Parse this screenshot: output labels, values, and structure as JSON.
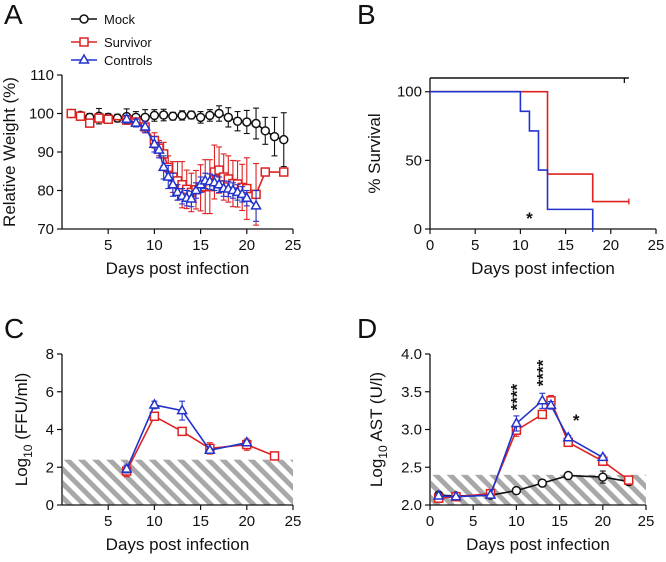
{
  "chart_data": [
    {
      "panel": "A",
      "type": "line",
      "xlabel": "Days post infection",
      "ylabel": "Relative Weight  (%)",
      "xlim": [
        0,
        25
      ],
      "ylim": [
        70,
        110
      ],
      "xticks": [
        5,
        10,
        15,
        20,
        25
      ],
      "yticks": [
        70,
        80,
        90,
        100,
        110
      ],
      "legend": {
        "position": "top-left",
        "entries": [
          "Mock",
          "Survivor",
          "Controls"
        ]
      },
      "series": [
        {
          "name": "Mock",
          "color": "#111111",
          "marker": "circle",
          "x": [
            1,
            2,
            3,
            4,
            5,
            6,
            7,
            8,
            9,
            10,
            11,
            12,
            13,
            14,
            15,
            16,
            17,
            18,
            19,
            20,
            21,
            22,
            23,
            24
          ],
          "y": [
            100,
            99.5,
            99,
            99.3,
            99,
            98.8,
            99.2,
            99,
            99,
            99.5,
            99.6,
            99.3,
            99.5,
            99.6,
            99,
            99.5,
            100,
            99,
            98,
            97.8,
            97.4,
            95.5,
            94,
            93.2
          ],
          "err": [
            0.5,
            0.8,
            1,
            2,
            1,
            1,
            2,
            1.5,
            2,
            1.5,
            1.5,
            1,
            1.2,
            1,
            1.5,
            1.5,
            2,
            2.5,
            2.5,
            3,
            4,
            3.5,
            5,
            7
          ]
        },
        {
          "name": "Survivor",
          "color": "#dd2222",
          "marker": "square",
          "x": [
            1,
            2,
            3,
            4,
            5,
            7,
            8,
            9,
            10,
            10.5,
            11,
            11.5,
            12,
            12.5,
            13,
            13.5,
            14,
            14.5,
            15,
            15.5,
            16,
            16.5,
            17,
            17.5,
            18,
            18.5,
            19,
            19.5,
            20,
            21,
            22,
            24
          ],
          "y": [
            100,
            99.3,
            97.5,
            98.8,
            98.5,
            98.3,
            97.8,
            96.5,
            93,
            91,
            89.5,
            86,
            83.5,
            82.5,
            81.5,
            80.3,
            79.5,
            80.2,
            80.7,
            81,
            81,
            84.8,
            85.3,
            83.5,
            83,
            81.8,
            81.7,
            80.8,
            80.5,
            79,
            84.8,
            84.8
          ],
          "err": [
            0.5,
            0.5,
            1,
            1,
            1,
            1,
            1,
            1.5,
            2,
            2,
            3,
            3,
            4,
            5,
            6,
            5,
            5,
            5,
            6,
            7,
            7,
            7,
            6,
            6,
            6,
            6,
            6,
            6,
            8,
            8,
            1,
            1
          ]
        },
        {
          "name": "Controls",
          "color": "#2233cc",
          "marker": "triangle",
          "x": [
            7,
            8,
            9,
            10,
            10.5,
            11,
            11.5,
            12,
            12.5,
            13,
            13.5,
            14,
            14.5,
            15,
            15.5,
            16,
            16.5,
            17,
            17.5,
            18,
            18.5,
            19,
            19.5,
            20,
            21
          ],
          "y": [
            98.5,
            97.5,
            96.5,
            92,
            90.5,
            86,
            83.5,
            81.5,
            79.5,
            78.5,
            78,
            77.8,
            80,
            81.5,
            82.5,
            82.3,
            82,
            81.5,
            80.5,
            80.4,
            80,
            79.5,
            79,
            78,
            76
          ],
          "err": [
            1,
            1,
            1.5,
            2,
            2,
            3,
            3,
            3,
            2,
            2,
            2,
            2,
            2,
            2,
            2,
            2,
            2,
            2,
            2,
            2,
            2,
            2,
            2,
            2,
            4
          ]
        }
      ]
    },
    {
      "panel": "B",
      "type": "line",
      "subtype": "kaplan-meier",
      "xlabel": "Days post infection",
      "ylabel": "% Survival",
      "xlim": [
        0,
        25
      ],
      "ylim": [
        0,
        110
      ],
      "xticks": [
        0,
        5,
        10,
        15,
        20,
        25
      ],
      "yticks": [
        0,
        50,
        100
      ],
      "annotation": {
        "text": "*",
        "x": 11,
        "y": 8
      },
      "series": [
        {
          "name": "Mock",
          "color": "#111111",
          "steps": [
            [
              0,
              110
            ],
            [
              22,
              110
            ]
          ],
          "censor": [
            21.5
          ]
        },
        {
          "name": "Survivor",
          "color": "#dd2222",
          "steps": [
            [
              0,
              100
            ],
            [
              13,
              100
            ],
            [
              13,
              40
            ],
            [
              18,
              40
            ],
            [
              18,
              20
            ],
            [
              22,
              20
            ]
          ]
        },
        {
          "name": "Controls",
          "color": "#2233cc",
          "steps": [
            [
              0,
              100
            ],
            [
              10,
              100
            ],
            [
              10,
              85.7
            ],
            [
              11,
              85.7
            ],
            [
              11,
              71.4
            ],
            [
              12,
              71.4
            ],
            [
              12,
              42.9
            ],
            [
              13,
              42.9
            ],
            [
              13,
              14.3
            ],
            [
              18,
              14.3
            ],
            [
              18,
              0
            ]
          ]
        }
      ]
    },
    {
      "panel": "C",
      "type": "line",
      "xlabel": "Days post infection",
      "ylabel": "Log10 (FFU/ml)",
      "ylabel_main": "Log",
      "ylabel_sub": "10",
      "ylabel_rest": "(FFU/ml)",
      "xlim": [
        0,
        25
      ],
      "ylim": [
        0,
        8
      ],
      "xticks": [
        5,
        10,
        15,
        20,
        25
      ],
      "yticks": [
        0,
        2,
        4,
        6,
        8
      ],
      "limit_of_detection": 2.4,
      "series": [
        {
          "name": "Survivor",
          "color": "#dd2222",
          "marker": "square",
          "x": [
            7,
            10,
            13,
            16,
            20,
            23
          ],
          "y": [
            1.8,
            4.7,
            3.9,
            3.0,
            3.2,
            2.6
          ],
          "err": [
            0.3,
            0.2,
            0.1,
            0.3,
            0.3,
            0.1
          ]
        },
        {
          "name": "Controls",
          "color": "#2233cc",
          "marker": "triangle",
          "x": [
            7,
            10,
            13,
            16,
            20
          ],
          "y": [
            1.9,
            5.3,
            5.0,
            2.9,
            3.3
          ],
          "err": [
            0.2,
            0.2,
            0.5,
            0.1,
            0.1
          ]
        }
      ]
    },
    {
      "panel": "D",
      "type": "line",
      "xlabel": "Days post infection",
      "ylabel": "Log10 AST (U/l)",
      "ylabel_main": "Log",
      "ylabel_sub": "10",
      "ylabel_rest": "AST (U/l)",
      "xlim": [
        0,
        25
      ],
      "ylim": [
        2.0,
        4.0
      ],
      "xticks": [
        0,
        5,
        10,
        15,
        20,
        25
      ],
      "yticks": [
        "2.0",
        "2.5",
        "3.0",
        "3.5",
        "4.0"
      ],
      "limit_of_detection": 2.4,
      "annotations": [
        {
          "text": "****",
          "x": 10
        },
        {
          "text": "****",
          "x": 13
        },
        {
          "text": "*",
          "x": 16
        }
      ],
      "series": [
        {
          "name": "Mock",
          "color": "#111111",
          "marker": "circle",
          "x": [
            1,
            3,
            7,
            10,
            13,
            16,
            20,
            23
          ],
          "y": [
            2.13,
            2.12,
            2.13,
            2.19,
            2.29,
            2.39,
            2.37,
            2.31
          ],
          "err": [
            0.03,
            0.02,
            0.02,
            0.02,
            0.02,
            0.02,
            0.08,
            0.03
          ]
        },
        {
          "name": "Survivor",
          "color": "#dd2222",
          "marker": "square",
          "x": [
            1,
            3,
            7,
            10,
            13,
            14,
            16,
            20,
            23
          ],
          "y": [
            2.09,
            2.11,
            2.15,
            2.99,
            3.2,
            3.38,
            2.83,
            2.58,
            2.33
          ],
          "err": [
            0.03,
            0.03,
            0.03,
            0.08,
            0.05,
            0.07,
            0.04,
            0.04,
            0.03
          ]
        },
        {
          "name": "Controls",
          "color": "#2233cc",
          "marker": "triangle",
          "x": [
            1,
            3,
            7,
            10,
            13,
            14,
            16,
            20
          ],
          "y": [
            2.12,
            2.11,
            2.13,
            3.08,
            3.38,
            3.32,
            2.89,
            2.63
          ],
          "err": [
            0.03,
            0.02,
            0.02,
            0.1,
            0.1,
            0.05,
            0.03,
            0.03
          ]
        }
      ]
    }
  ]
}
